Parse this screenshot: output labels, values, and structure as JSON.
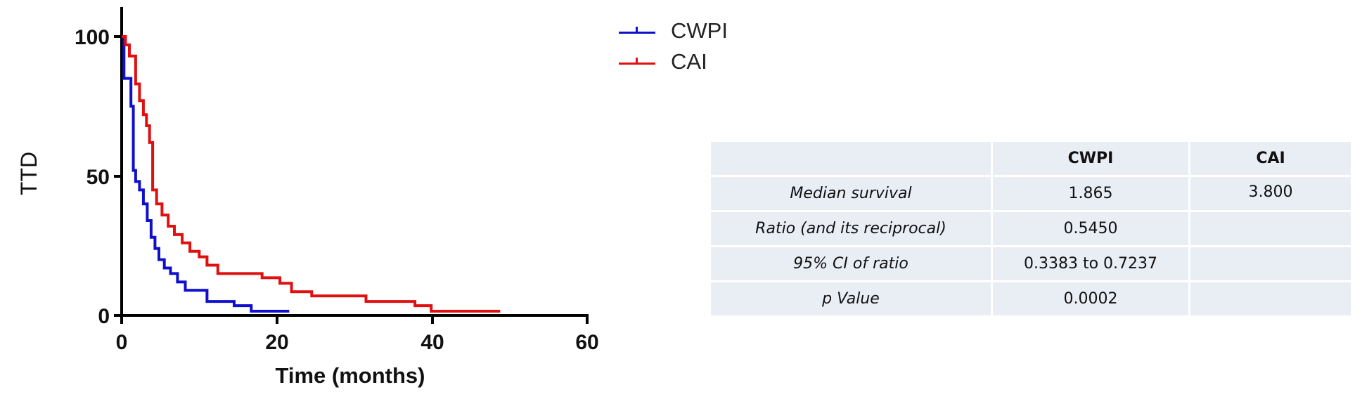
{
  "chart_data": {
    "type": "line",
    "subtype": "kaplan-meier step",
    "title": "",
    "xlabel": "Time (months)",
    "ylabel": "TTD",
    "xlim": [
      0,
      60
    ],
    "ylim": [
      0,
      100
    ],
    "xticks": [
      0,
      20,
      40,
      60
    ],
    "yticks": [
      0,
      50,
      100
    ],
    "grid": false,
    "legend_position": "top-right",
    "series": [
      {
        "name": "CWPI",
        "color": "#1010cc",
        "x": [
          0,
          0.3,
          1.2,
          1.5,
          1.8,
          2.3,
          2.8,
          3.3,
          3.8,
          4.3,
          4.8,
          5.5,
          6.3,
          7.2,
          8.2,
          11.0,
          14.5,
          16.7,
          21.6
        ],
        "y": [
          100,
          85,
          75,
          52,
          48,
          45,
          40,
          34,
          28,
          24,
          20,
          17,
          15,
          12,
          9,
          5,
          3.5,
          1.5,
          1.5
        ]
      },
      {
        "name": "CAI",
        "color": "#e01010",
        "x": [
          0,
          0.5,
          1.0,
          1.8,
          2.3,
          2.8,
          3.2,
          3.6,
          4.0,
          4.5,
          5.2,
          6.0,
          6.8,
          7.8,
          8.8,
          10.0,
          11.0,
          12.4,
          18.1,
          20.4,
          21.9,
          24.5,
          31.5,
          37.8,
          39.9,
          48.8
        ],
        "y": [
          100,
          97,
          93,
          83,
          77,
          72,
          68,
          62,
          45,
          40,
          36,
          32,
          29,
          26,
          23,
          21,
          18,
          15,
          13.5,
          11.5,
          8.5,
          7,
          5,
          3.5,
          1.5,
          1.5
        ]
      }
    ]
  },
  "chart": {
    "ylabel": "TTD",
    "xlabel": "Time (months)",
    "yticks": [
      "0",
      "50",
      "100"
    ],
    "xticks": [
      "0",
      "20",
      "40",
      "60"
    ]
  },
  "legend": {
    "items": [
      {
        "label": "CWPI",
        "color": "#1010cc"
      },
      {
        "label": "CAI",
        "color": "#e01010"
      }
    ]
  },
  "table": {
    "headers": [
      "",
      "CWPI",
      "CAI"
    ],
    "rows": [
      [
        "Median survival",
        "1.865",
        "3.800"
      ],
      [
        "Ratio (and its reciprocal)",
        "0.5450",
        ""
      ],
      [
        "95% CI of ratio",
        "0.3383 to 0.7237",
        ""
      ],
      [
        "p Value",
        "0.0002",
        ""
      ]
    ]
  }
}
